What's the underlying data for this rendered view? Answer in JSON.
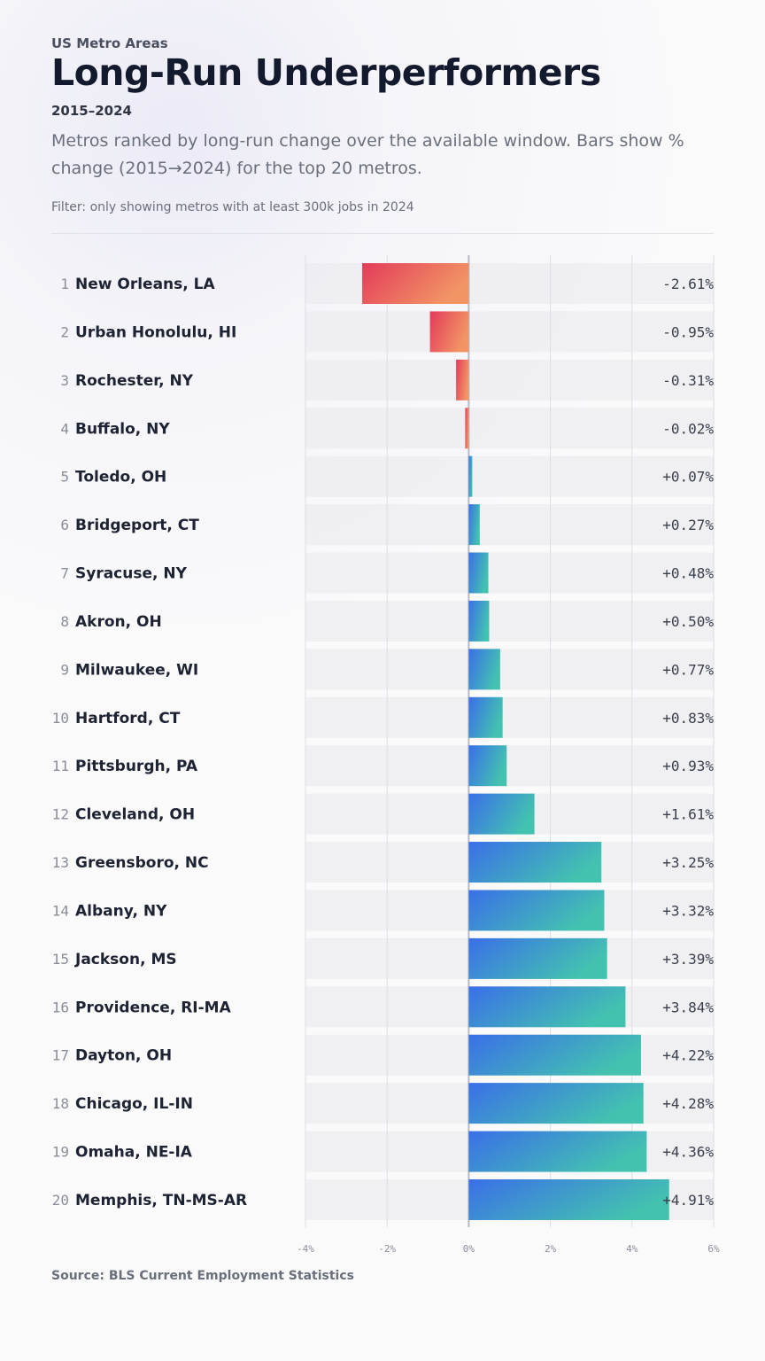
{
  "header": {
    "kicker": "US Metro Areas",
    "title": "Long-Run Underperformers",
    "years": "2015–2024",
    "subtitle": "Metros ranked by long-run change over the available window. Bars show % change (2015→2024) for the top 20 metros.",
    "filter": "Filter: only showing metros with at least 300k jobs in 2024"
  },
  "footer": {
    "source": "Source: BLS Current Employment Statistics"
  },
  "colors": {
    "negative": [
      "#e33b5a",
      "#f29565"
    ],
    "positive": [
      "#3a6fe8",
      "#43c2b0"
    ]
  },
  "chart_data": {
    "type": "bar",
    "orientation": "horizontal",
    "xlim": [
      -4,
      6
    ],
    "unit": "%",
    "ticks": [
      "-4%",
      "-2%",
      "0%",
      "2%",
      "4%",
      "6%"
    ],
    "tick_values": [
      -4,
      -2,
      0,
      2,
      4,
      6
    ],
    "grid": true,
    "categories": [
      "New Orleans, LA",
      "Urban Honolulu, HI",
      "Rochester, NY",
      "Buffalo, NY",
      "Toledo, OH",
      "Bridgeport, CT",
      "Syracuse, NY",
      "Akron, OH",
      "Milwaukee, WI",
      "Hartford, CT",
      "Pittsburgh, PA",
      "Cleveland, OH",
      "Greensboro, NC",
      "Albany, NY",
      "Jackson, MS",
      "Providence, RI-MA",
      "Dayton, OH",
      "Chicago, IL-IN",
      "Omaha, NE-IA",
      "Memphis, TN-MS-AR"
    ],
    "values": [
      -2.61,
      -0.95,
      -0.31,
      -0.02,
      0.07,
      0.27,
      0.48,
      0.5,
      0.77,
      0.83,
      0.93,
      1.61,
      3.25,
      3.32,
      3.39,
      3.84,
      4.22,
      4.28,
      4.36,
      4.91
    ],
    "value_labels": [
      "-2.61%",
      "-0.95%",
      "-0.31%",
      "-0.02%",
      "+0.07%",
      "+0.27%",
      "+0.48%",
      "+0.50%",
      "+0.77%",
      "+0.83%",
      "+0.93%",
      "+1.61%",
      "+3.25%",
      "+3.32%",
      "+3.39%",
      "+3.84%",
      "+4.22%",
      "+4.28%",
      "+4.36%",
      "+4.91%"
    ]
  }
}
